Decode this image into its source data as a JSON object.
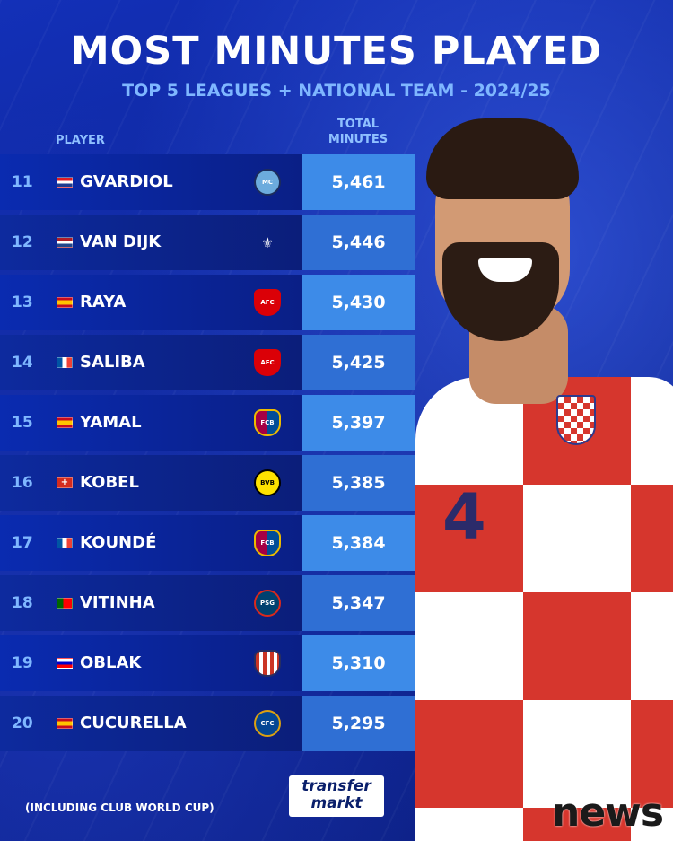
{
  "header": {
    "title": "MOST MINUTES PLAYED",
    "subtitle": "TOP 5 LEAGUES + NATIONAL TEAM - 2024/25",
    "col_player": "PLAYER",
    "col_total_line1": "TOTAL",
    "col_total_line2": "MINUTES"
  },
  "rows": [
    {
      "rank": "11",
      "name": "GVARDIOL",
      "minutes": "5,461",
      "flag": "croatia-flag",
      "club": "man-city-badge"
    },
    {
      "rank": "12",
      "name": "VAN DIJK",
      "minutes": "5,446",
      "flag": "netherlands-flag",
      "club": "liverpool-badge"
    },
    {
      "rank": "13",
      "name": "RAYA",
      "minutes": "5,430",
      "flag": "spain-flag",
      "club": "arsenal-badge"
    },
    {
      "rank": "14",
      "name": "SALIBA",
      "minutes": "5,425",
      "flag": "france-flag",
      "club": "arsenal-badge"
    },
    {
      "rank": "15",
      "name": "YAMAL",
      "minutes": "5,397",
      "flag": "spain-flag",
      "club": "barcelona-badge"
    },
    {
      "rank": "16",
      "name": "KOBEL",
      "minutes": "5,385",
      "flag": "switzerland-flag",
      "club": "dortmund-badge"
    },
    {
      "rank": "17",
      "name": "KOUNDÉ",
      "minutes": "5,384",
      "flag": "france-flag",
      "club": "barcelona-badge"
    },
    {
      "rank": "18",
      "name": "VITINHA",
      "minutes": "5,347",
      "flag": "portugal-flag",
      "club": "psg-badge"
    },
    {
      "rank": "19",
      "name": "OBLAK",
      "minutes": "5,310",
      "flag": "slovenia-flag",
      "club": "atletico-badge"
    },
    {
      "rank": "20",
      "name": "CUCURELLA",
      "minutes": "5,295",
      "flag": "spain-flag",
      "club": "chelsea-badge"
    }
  ],
  "footer": {
    "note": "(INCLUDING CLUB WORLD CUP)",
    "logo_line1": "transfer",
    "logo_line2": "markt",
    "watermark": "news"
  },
  "colors": {
    "background": "#0b1f8a",
    "minutes_cell": "#3d8be8",
    "accent_text": "#7fb7ff"
  }
}
